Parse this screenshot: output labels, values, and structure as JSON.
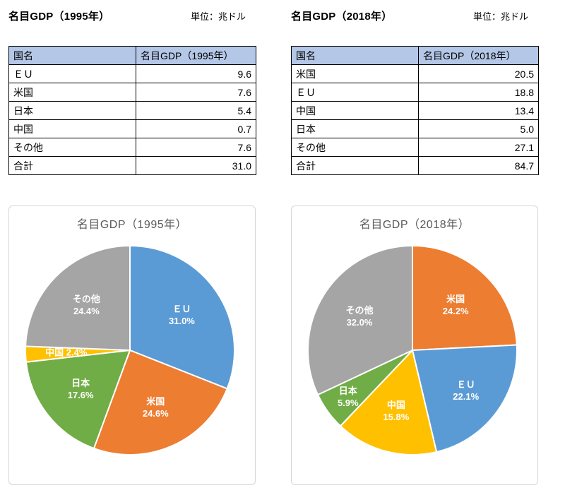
{
  "panels": [
    {
      "title": "名目GDP（1995年）",
      "unit": "単位：兆ドル",
      "table": {
        "headers": [
          "国名",
          "名目GDP（1995年）"
        ],
        "rows": [
          [
            "ＥＵ",
            "9.6"
          ],
          [
            "米国",
            "7.6"
          ],
          [
            "日本",
            "5.4"
          ],
          [
            "中国",
            "0.7"
          ],
          [
            "その他",
            "7.6"
          ],
          [
            "合計",
            "31.0"
          ]
        ]
      }
    },
    {
      "title": "名目GDP（2018年）",
      "unit": "単位：兆ドル",
      "table": {
        "headers": [
          "国名",
          "名目GDP（2018年）"
        ],
        "rows": [
          [
            "米国",
            "20.5"
          ],
          [
            "ＥＵ",
            "18.8"
          ],
          [
            "中国",
            "13.4"
          ],
          [
            "日本",
            "5.0"
          ],
          [
            "その他",
            "27.1"
          ],
          [
            "合計",
            "84.7"
          ]
        ]
      }
    }
  ],
  "chart_data": [
    {
      "type": "pie",
      "title": "名目GDP（1995年）",
      "unit": "兆ドル",
      "start_angle_deg": 0,
      "direction": "clockwise",
      "legend": "none (labels inside slices)",
      "labels": [
        "ＥＵ",
        "米国",
        "日本",
        "中国",
        "その他"
      ],
      "values": [
        9.6,
        7.6,
        5.4,
        0.7,
        7.6
      ],
      "total": 31.0,
      "percents": [
        31.0,
        24.6,
        17.6,
        2.4,
        24.4
      ],
      "percent_labels": [
        "31.0%",
        "24.6%",
        "17.6%",
        "2.4%",
        "24.4%"
      ],
      "colors": [
        "#5B9BD5",
        "#ED7D31",
        "#70AD47",
        "#FFC000",
        "#A5A5A5"
      ],
      "label_layout": [
        {
          "r": 0.6
        },
        {
          "r": 0.6
        },
        {
          "r": 0.6
        },
        {
          "r": 0.61,
          "single_line": true
        },
        {
          "r": 0.6
        }
      ]
    },
    {
      "type": "pie",
      "title": "名目GDP（2018年）",
      "unit": "兆ドル",
      "start_angle_deg": 0,
      "direction": "clockwise",
      "legend": "none (labels inside slices)",
      "labels": [
        "米国",
        "ＥＵ",
        "中国",
        "日本",
        "その他"
      ],
      "values": [
        20.5,
        18.8,
        13.4,
        5.0,
        27.1
      ],
      "total": 84.7,
      "percents": [
        24.2,
        22.1,
        15.8,
        5.9,
        32.0
      ],
      "percent_labels": [
        "24.2%",
        "22.1%",
        "15.8%",
        "5.9%",
        "32.0%"
      ],
      "colors": [
        "#ED7D31",
        "#5B9BD5",
        "#FFC000",
        "#70AD47",
        "#A5A5A5"
      ],
      "label_layout": [
        {
          "r": 0.6
        },
        {
          "r": 0.64
        },
        {
          "r": 0.6
        },
        {
          "r": 0.76
        },
        {
          "r": 0.6
        }
      ]
    }
  ],
  "theme": {
    "table_header_bg": "#B4C7E7",
    "table_border": "#000000",
    "chart_border": "#D6D6D6",
    "chart_title_gray": "#595959",
    "accent_blue": "#5B9BD5",
    "accent_orange": "#ED7D31",
    "accent_green": "#70AD47",
    "accent_yellow": "#FFC000",
    "accent_gray": "#A5A5A5"
  }
}
